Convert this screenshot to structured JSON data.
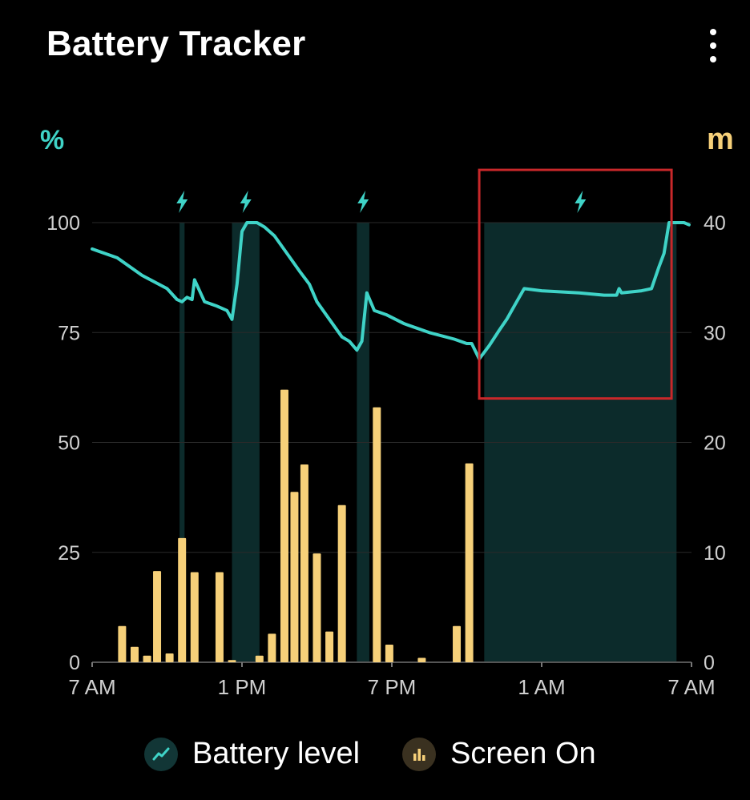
{
  "app": {
    "title": "Battery Tracker"
  },
  "colors": {
    "battery_line": "#3fd3c7",
    "screen_bar": "#f6d079",
    "charging_band": "#0c2b2b",
    "highlight_box": "#c8282a",
    "axis_text": "#cfcfcf",
    "grid": "#2a2a2a"
  },
  "legend": {
    "battery_label": "Battery level",
    "screen_label": "Screen On",
    "battery_icon": "trending-line-icon",
    "screen_icon": "bar-chart-icon"
  },
  "chart_data": {
    "type": "line",
    "left_axis_unit": "%",
    "right_axis_unit": "m",
    "x_ticks": [
      "7 AM",
      "1 PM",
      "7 PM",
      "1 AM",
      "7 AM"
    ],
    "x_range_hours": [
      7,
      31
    ],
    "left_ticks": [
      "0",
      "25",
      "50",
      "75",
      "100"
    ],
    "right_ticks": [
      "0",
      "10",
      "20",
      "30",
      "40"
    ],
    "ylim_left": [
      0,
      100
    ],
    "ylim_right": [
      0,
      40
    ],
    "grid": true,
    "legend_position": "bottom",
    "charging_periods": [
      {
        "start": 10.5,
        "end": 10.7,
        "icon": "lightning-icon"
      },
      {
        "start": 12.6,
        "end": 13.7,
        "icon": "lightning-icon"
      },
      {
        "start": 17.6,
        "end": 18.1,
        "icon": "lightning-icon"
      },
      {
        "start": 22.7,
        "end": 30.4,
        "icon": "lightning-icon"
      }
    ],
    "highlight_region": {
      "x_start": 22.5,
      "x_end": 30.2,
      "y_start": 60,
      "y_end": 112
    },
    "series": [
      {
        "name": "Battery level",
        "axis": "left",
        "type": "line",
        "points": [
          [
            7.0,
            94
          ],
          [
            8.0,
            92
          ],
          [
            9.0,
            88
          ],
          [
            10.0,
            85
          ],
          [
            10.4,
            82.5
          ],
          [
            10.6,
            82
          ],
          [
            10.8,
            83
          ],
          [
            11.0,
            82.5
          ],
          [
            11.1,
            87
          ],
          [
            11.5,
            82
          ],
          [
            12.0,
            81
          ],
          [
            12.4,
            80
          ],
          [
            12.6,
            78
          ],
          [
            12.8,
            86
          ],
          [
            13.0,
            98
          ],
          [
            13.2,
            100
          ],
          [
            13.6,
            100
          ],
          [
            13.9,
            99
          ],
          [
            14.3,
            97
          ],
          [
            14.8,
            93
          ],
          [
            15.3,
            89
          ],
          [
            15.7,
            86
          ],
          [
            16.0,
            82
          ],
          [
            16.5,
            78
          ],
          [
            17.0,
            74
          ],
          [
            17.3,
            73
          ],
          [
            17.6,
            71
          ],
          [
            17.8,
            73
          ],
          [
            18.0,
            84
          ],
          [
            18.3,
            80
          ],
          [
            18.8,
            79
          ],
          [
            19.5,
            77
          ],
          [
            20.5,
            75
          ],
          [
            21.5,
            73.5
          ],
          [
            22.0,
            72.5
          ],
          [
            22.2,
            72.5
          ],
          [
            22.5,
            69
          ],
          [
            22.9,
            72
          ],
          [
            23.3,
            75.5
          ],
          [
            23.6,
            78
          ],
          [
            24.0,
            82
          ],
          [
            24.3,
            85
          ],
          [
            25.0,
            84.5
          ],
          [
            26.5,
            84
          ],
          [
            27.5,
            83.5
          ],
          [
            28.0,
            83.5
          ],
          [
            28.1,
            85
          ],
          [
            28.2,
            84
          ],
          [
            29.0,
            84.5
          ],
          [
            29.4,
            85
          ],
          [
            29.7,
            90
          ],
          [
            29.9,
            93
          ],
          [
            30.1,
            100
          ],
          [
            30.4,
            100
          ],
          [
            30.7,
            100
          ],
          [
            30.9,
            99.5
          ]
        ]
      },
      {
        "name": "Screen On",
        "axis": "right",
        "type": "bar",
        "points": [
          [
            8.2,
            3.3
          ],
          [
            8.7,
            1.4
          ],
          [
            9.2,
            0.6
          ],
          [
            9.6,
            8.3
          ],
          [
            10.1,
            0.8
          ],
          [
            10.6,
            11.3
          ],
          [
            11.1,
            8.2
          ],
          [
            12.1,
            8.2
          ],
          [
            12.6,
            0.2
          ],
          [
            13.7,
            0.6
          ],
          [
            14.2,
            2.6
          ],
          [
            14.7,
            24.8
          ],
          [
            15.1,
            15.5
          ],
          [
            15.5,
            18.0
          ],
          [
            16.0,
            9.9
          ],
          [
            16.5,
            2.8
          ],
          [
            17.0,
            14.3
          ],
          [
            17.6,
            0.0
          ],
          [
            18.4,
            23.2
          ],
          [
            18.9,
            1.6
          ],
          [
            20.2,
            0.4
          ],
          [
            21.6,
            3.3
          ],
          [
            22.1,
            18.1
          ]
        ]
      }
    ]
  }
}
